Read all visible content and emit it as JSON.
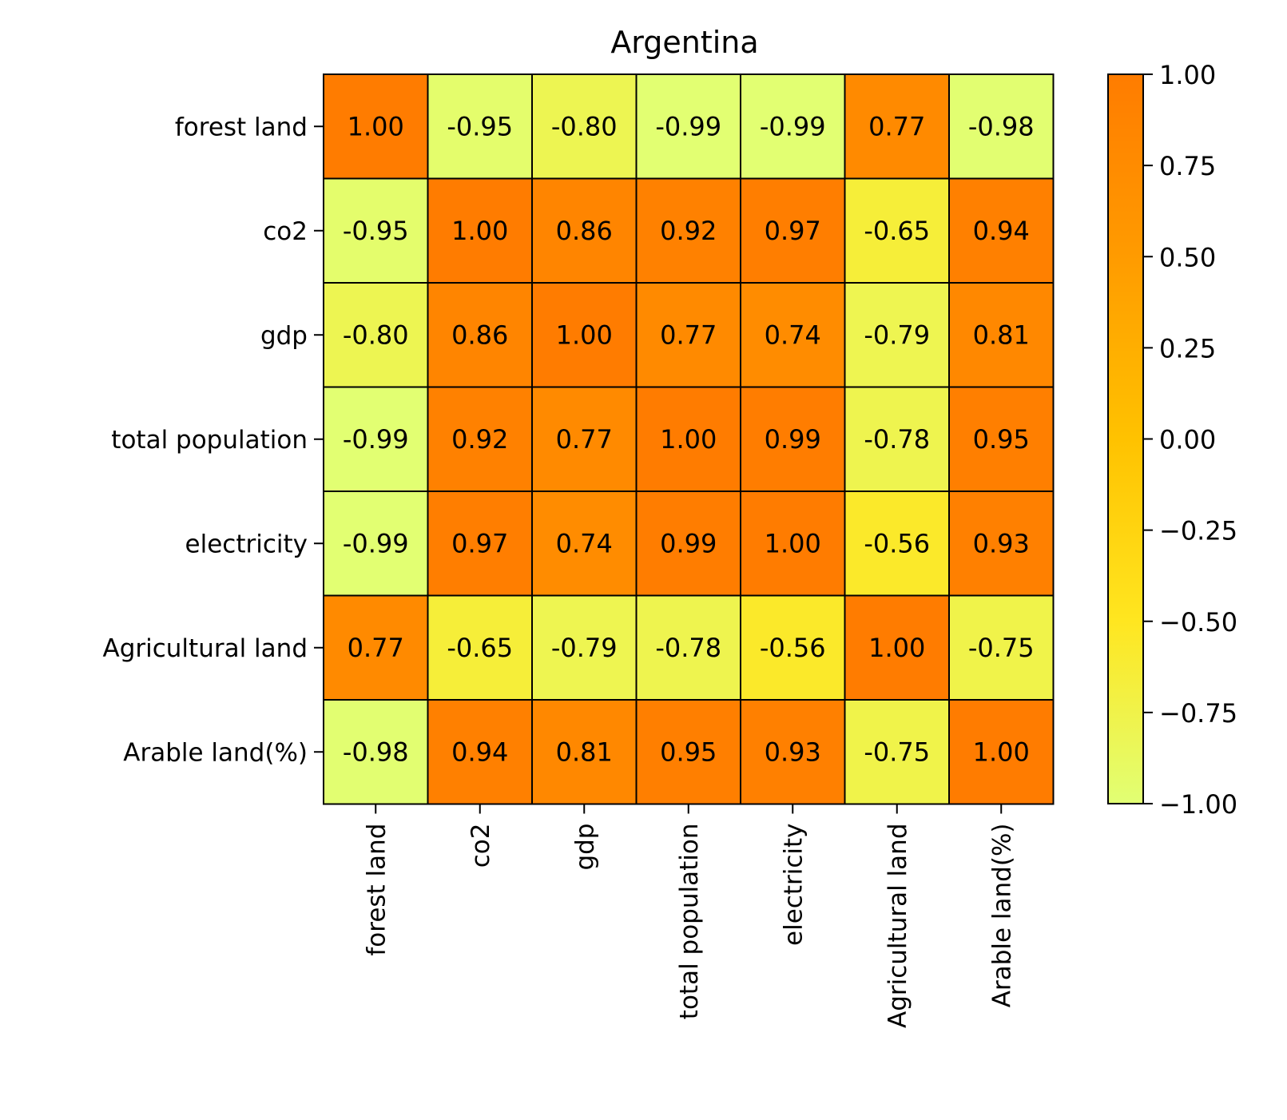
{
  "chart_data": {
    "type": "heatmap",
    "title": "Argentina",
    "row_labels": [
      "forest land",
      "co2",
      "gdp",
      "total population",
      "electricity",
      "Agricultural land",
      "Arable land(%)"
    ],
    "col_labels": [
      "forest land",
      "co2",
      "gdp",
      "total population",
      "electricity",
      "Agricultural land",
      "Arable land(%)"
    ],
    "values": [
      [
        1.0,
        -0.95,
        -0.8,
        -0.99,
        -0.99,
        0.77,
        -0.98
      ],
      [
        -0.95,
        1.0,
        0.86,
        0.92,
        0.97,
        -0.65,
        0.94
      ],
      [
        -0.8,
        0.86,
        1.0,
        0.77,
        0.74,
        -0.79,
        0.81
      ],
      [
        -0.99,
        0.92,
        0.77,
        1.0,
        0.99,
        -0.78,
        0.95
      ],
      [
        -0.99,
        0.97,
        0.74,
        0.99,
        1.0,
        -0.56,
        0.93
      ],
      [
        0.77,
        -0.65,
        -0.79,
        -0.78,
        -0.56,
        1.0,
        -0.75
      ],
      [
        -0.98,
        0.94,
        0.81,
        0.95,
        0.93,
        -0.75,
        1.0
      ]
    ],
    "value_format": "2 decimals",
    "annotations": true,
    "colorbar": {
      "range": [
        -1.0,
        1.0
      ],
      "ticks": [
        "1.00",
        "0.75",
        "0.50",
        "0.25",
        "0.00",
        "−0.25",
        "−0.50",
        "−0.75",
        "−1.00"
      ],
      "tick_values": [
        1.0,
        0.75,
        0.5,
        0.25,
        0.0,
        -0.25,
        -0.5,
        -0.75,
        -1.0
      ],
      "placement": "right"
    },
    "colormap_stops": [
      "#e1ff74",
      "#ffe620",
      "#ffc200",
      "#ff9b00",
      "#ff7c00"
    ],
    "grid": false
  }
}
